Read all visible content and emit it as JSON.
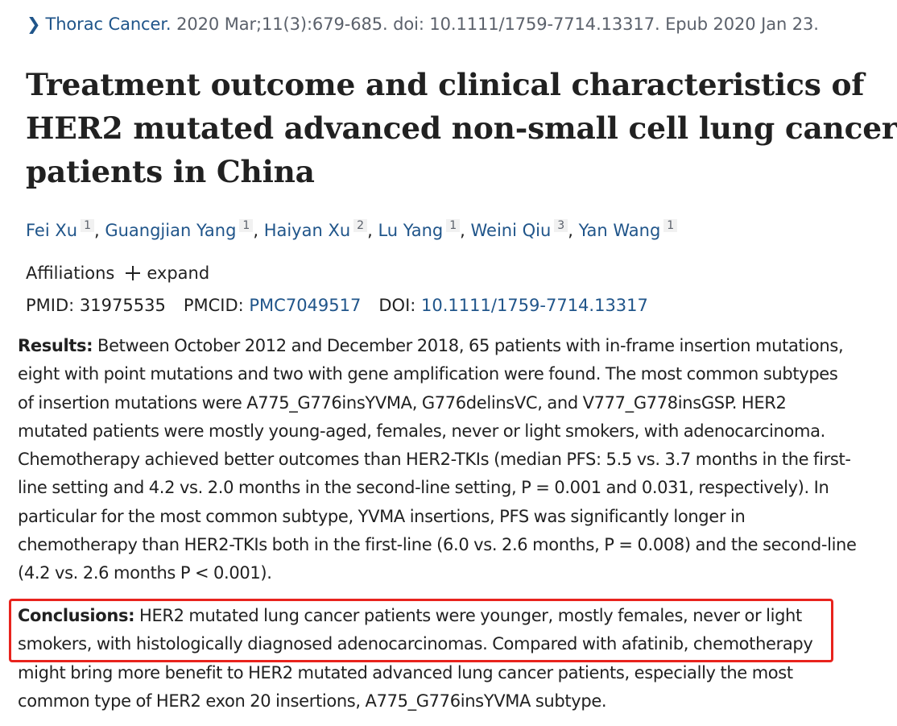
{
  "citation": {
    "journal": "Thorac Cancer.",
    "details": " 2020 Mar;11(3):679-685. doi: 10.1111/1759-7714.13317. Epub 2020 Jan 23."
  },
  "title": {
    "line1": "Treatment outcome and clinical characteristics of",
    "line2": "HER2 mutated advanced non-small cell lung cancer",
    "line3": "patients in China"
  },
  "authors": [
    {
      "name": "Fei Xu",
      "sup": "1"
    },
    {
      "name": "Guangjian Yang",
      "sup": "1"
    },
    {
      "name": "Haiyan Xu",
      "sup": "2"
    },
    {
      "name": "Lu Yang",
      "sup": "1"
    },
    {
      "name": "Weini Qiu",
      "sup": "3"
    },
    {
      "name": "Yan Wang",
      "sup": "1"
    }
  ],
  "author_separator": ", ",
  "affiliations": {
    "label": "Affiliations",
    "expand_label": "expand"
  },
  "identifiers": {
    "pmid_label": "PMID:",
    "pmid_value": "31975535",
    "pmcid_label": "PMCID:",
    "pmcid_value": "PMC7049517",
    "doi_label": "DOI:",
    "doi_value": "10.1111/1759-7714.13317"
  },
  "results": {
    "label": "Results:",
    "lines": [
      " Between October 2012 and December 2018, 65 patients with in-frame insertion mutations,",
      "eight with point mutations and two with gene amplification were found. The most common subtypes",
      "of insertion mutations were A775_G776insYVMA, G776delinsVC, and V777_G778insGSP. HER2",
      "mutated patients were mostly young-aged, females, never or light smokers, with adenocarcinoma.",
      "Chemotherapy achieved better outcomes than HER2-TKIs (median PFS: 5.5 vs. 3.7 months in the first-",
      "line setting and 4.2 vs. 2.0 months in the second-line setting, P = 0.001 and 0.031, respectively). In",
      "particular for the most common subtype, YVMA insertions, PFS was significantly longer in",
      "chemotherapy than HER2-TKIs both in the first-line (6.0 vs. 2.6 months, P = 0.008) and the second-line",
      "(4.2 vs. 2.6 months P < 0.001)."
    ]
  },
  "conclusions": {
    "label": "Conclusions:",
    "lines": [
      " HER2 mutated lung cancer patients were younger, mostly females, never or light",
      "smokers, with histologically diagnosed adenocarcinomas. Compared with afatinib, chemotherapy",
      "might bring more benefit to HER2 mutated advanced lung cancer patients, especially the most",
      "common type of HER2 exon 20 insertions, A775_G776insYVMA subtype."
    ]
  },
  "colors": {
    "link": "#20558a",
    "text": "#212121",
    "muted": "#5b616b",
    "highlight_border": "#e8231d"
  }
}
